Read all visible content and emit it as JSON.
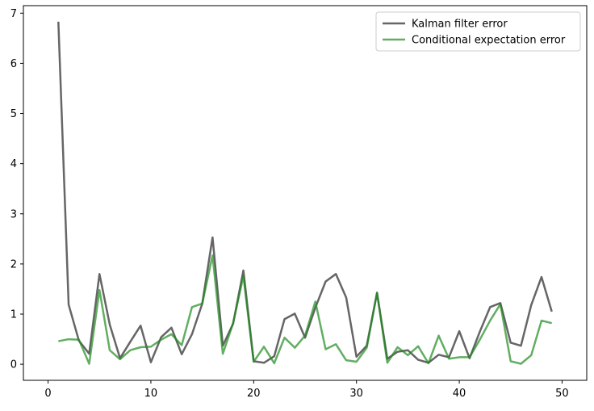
{
  "chart_data": {
    "type": "line",
    "title": "",
    "xlabel": "",
    "ylabel": "",
    "xlim": [
      -2.4,
      52.4
    ],
    "ylim": [
      -0.32,
      7.15
    ],
    "x_ticks": [
      0,
      10,
      20,
      30,
      40,
      50
    ],
    "y_ticks": [
      0,
      1,
      2,
      3,
      4,
      5,
      6,
      7
    ],
    "grid": false,
    "legend": {
      "position": "top-right"
    },
    "x": [
      1,
      2,
      3,
      4,
      5,
      6,
      7,
      8,
      9,
      10,
      11,
      12,
      13,
      14,
      15,
      16,
      17,
      18,
      19,
      20,
      21,
      22,
      23,
      24,
      25,
      26,
      27,
      28,
      29,
      30,
      31,
      32,
      33,
      34,
      35,
      36,
      37,
      38,
      39,
      40,
      41,
      42,
      43,
      44,
      45,
      46,
      47,
      48,
      49
    ],
    "series": [
      {
        "name": "Kalman filter error",
        "color": "#666666",
        "values": [
          6.83,
          1.19,
          0.47,
          0.21,
          1.8,
          0.79,
          0.12,
          0.45,
          0.77,
          0.04,
          0.54,
          0.73,
          0.2,
          0.6,
          1.21,
          2.53,
          0.37,
          0.81,
          1.87,
          0.06,
          0.03,
          0.16,
          0.9,
          1.01,
          0.53,
          1.13,
          1.65,
          1.8,
          1.33,
          0.15,
          0.37,
          1.42,
          0.11,
          0.25,
          0.28,
          0.09,
          0.03,
          0.19,
          0.14,
          0.66,
          0.12,
          0.65,
          1.14,
          1.22,
          0.43,
          0.37,
          1.18,
          1.74,
          1.05
        ]
      },
      {
        "name": "Conditional expectation error",
        "color": "#1f8c1f",
        "values": [
          0.46,
          0.5,
          0.49,
          0.01,
          1.48,
          0.28,
          0.1,
          0.28,
          0.34,
          0.35,
          0.49,
          0.6,
          0.38,
          1.14,
          1.21,
          2.17,
          0.21,
          0.82,
          1.76,
          0.05,
          0.35,
          0.02,
          0.53,
          0.33,
          0.57,
          1.25,
          0.3,
          0.4,
          0.08,
          0.05,
          0.33,
          1.43,
          0.03,
          0.34,
          0.18,
          0.36,
          0.02,
          0.57,
          0.11,
          0.14,
          0.14,
          0.49,
          0.87,
          1.2,
          0.06,
          0.01,
          0.18,
          0.87,
          0.82
        ]
      }
    ]
  }
}
